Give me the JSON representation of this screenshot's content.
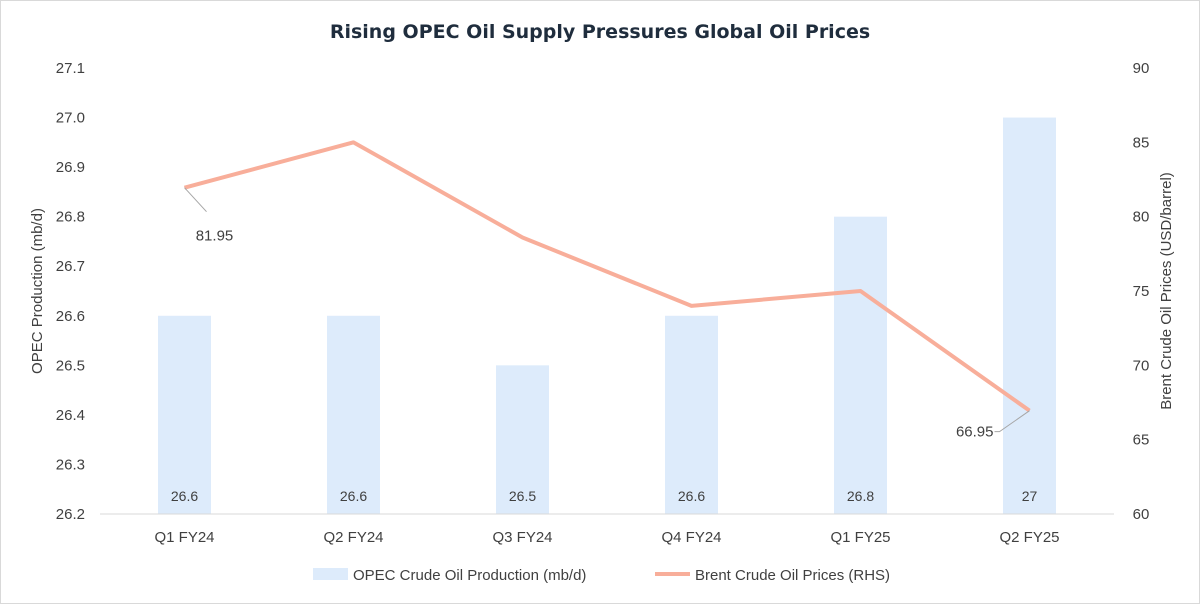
{
  "chart_data": {
    "type": "bar",
    "title": "Rising OPEC Oil Supply Pressures Global Oil Prices",
    "categories": [
      "Q1 FY24",
      "Q2 FY24",
      "Q3 FY24",
      "Q4 FY24",
      "Q1 FY25",
      "Q2 FY25"
    ],
    "series": [
      {
        "name": "OPEC Crude Oil Production (mb/d)",
        "type": "bar",
        "axis": "left",
        "values": [
          26.6,
          26.6,
          26.5,
          26.6,
          26.8,
          27.0
        ],
        "data_labels": [
          "26.6",
          "26.6",
          "26.5",
          "26.6",
          "26.8",
          "27"
        ],
        "color": "#ddebfb"
      },
      {
        "name": "Brent Crude Oil Prices (RHS)",
        "type": "line",
        "axis": "right",
        "values": [
          81.95,
          85.0,
          78.6,
          74.0,
          75.0,
          66.95
        ],
        "data_labels": [
          "81.95",
          "",
          "",
          "",
          "",
          "66.95"
        ],
        "color": "#f8ae9a"
      }
    ],
    "y_left": {
      "label": "OPEC Production (mb/d)",
      "range": [
        26.2,
        27.1
      ],
      "ticks": [
        "26.2",
        "26.3",
        "26.4",
        "26.5",
        "26.6",
        "26.7",
        "26.8",
        "26.9",
        "27.0",
        "27.1"
      ]
    },
    "y_right": {
      "label": "Brent Crude Oil Prices (USD/barrel)",
      "range": [
        60,
        90
      ],
      "ticks": [
        "60",
        "65",
        "70",
        "75",
        "80",
        "85",
        "90"
      ]
    },
    "grid": false,
    "legend_position": "bottom"
  }
}
